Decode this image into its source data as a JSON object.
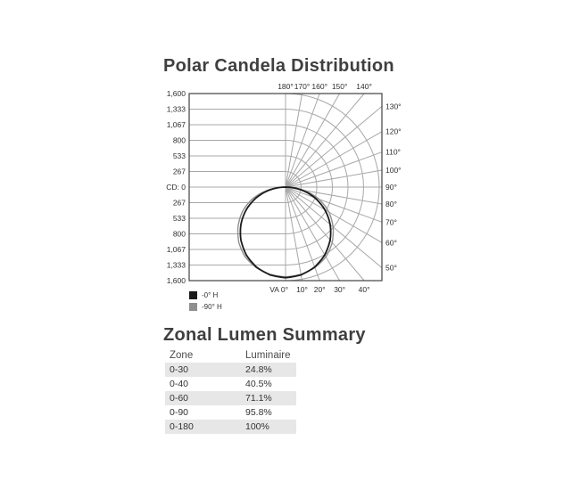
{
  "polar_chart": {
    "title": "Polar Candela Distribution",
    "legend": [
      {
        "label": "-0° H",
        "color": "#1b1b1b"
      },
      {
        "label": "-90° H",
        "color": "#8f8f8f"
      }
    ],
    "axis": {
      "left_labels": [
        "1,600",
        "1,333",
        "1,067",
        "800",
        "533",
        "267",
        "CD: 0",
        "267",
        "533",
        "800",
        "1,067",
        "1,333",
        "1,600"
      ],
      "top_labels": [
        "180°",
        "170°",
        "160°",
        "150°",
        "140°"
      ],
      "right_labels": [
        "130°",
        "120°",
        "110°",
        "100°",
        "90°",
        "80°",
        "70°",
        "60°",
        "50°"
      ],
      "bottom_labels": [
        "VA 0°",
        "10°",
        "20°",
        "30°",
        "40°"
      ]
    },
    "colors": {
      "grid": "#a8a8a8",
      "frame": "#3f3f3f",
      "tick_text": "#2f2f2f"
    }
  },
  "chart_data": {
    "type": "polar",
    "title": "Polar Candela Distribution",
    "radial_axis": {
      "label": "CD",
      "min": 0,
      "max": 1600,
      "tick_interval": 267,
      "ticks": [
        0,
        267,
        533,
        800,
        1067,
        1333,
        1600
      ]
    },
    "angle_axis": {
      "unit": "degrees from nadir (VA 0° = straight down)",
      "range": [
        0,
        180
      ],
      "grid_step_deg": 10
    },
    "layout": {
      "left_half": "rectilinear candela grid",
      "right_half": "polar fan",
      "legend_position": "bottom-left"
    },
    "series": [
      {
        "name": "-0° H",
        "color": "#1b1b1b",
        "angles_deg": [
          0,
          10,
          20,
          30,
          40,
          50,
          60,
          70,
          80,
          90
        ],
        "candela": [
          1550,
          1525,
          1455,
          1340,
          1185,
          995,
          775,
          530,
          270,
          0
        ]
      },
      {
        "name": "-90° H",
        "color": "#8f8f8f",
        "angles_deg": [
          0,
          10,
          20,
          30,
          40,
          50,
          60,
          70,
          80,
          90
        ],
        "candela": [
          1535,
          1515,
          1465,
          1380,
          1240,
          1060,
          855,
          610,
          315,
          0
        ]
      }
    ]
  },
  "zonal_summary": {
    "title": "Zonal Lumen Summary",
    "columns": [
      "Zone",
      "Luminaire"
    ],
    "rows": [
      {
        "zone": "0-30",
        "luminaire": "24.8%"
      },
      {
        "zone": "0-40",
        "luminaire": "40.5%"
      },
      {
        "zone": "0-60",
        "luminaire": "71.1%"
      },
      {
        "zone": "0-90",
        "luminaire": "95.8%"
      },
      {
        "zone": "0-180",
        "luminaire": "100%"
      }
    ],
    "row_shade": "#e7e7e7"
  }
}
